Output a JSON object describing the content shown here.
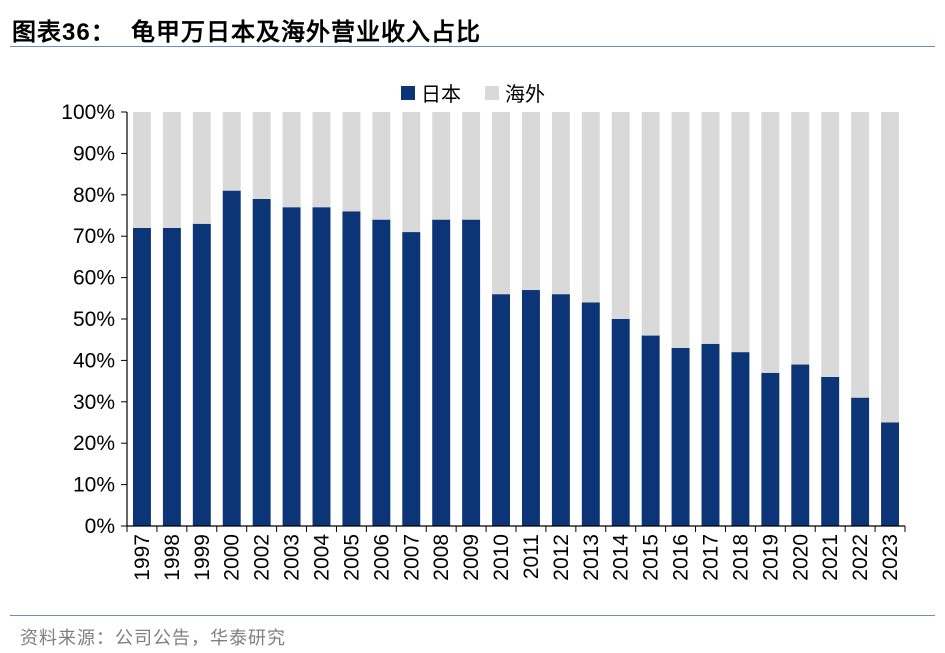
{
  "header": {
    "title": "图表36：  龟甲万日本及海外营业收入占比"
  },
  "footer": {
    "source": "资料来源：公司公告，华泰研究"
  },
  "colors": {
    "japan": "#0c3578",
    "overseas": "#d9d9d9",
    "rule": "#6d8fb5"
  },
  "chart_data": {
    "type": "bar",
    "stacked": true,
    "percent": true,
    "categories": [
      "1997",
      "1998",
      "1999",
      "2000",
      "2002",
      "2003",
      "2004",
      "2005",
      "2006",
      "2007",
      "2008",
      "2009",
      "2010",
      "2011",
      "2012",
      "2013",
      "2014",
      "2015",
      "2016",
      "2017",
      "2018",
      "2019",
      "2020",
      "2021",
      "2022",
      "2023"
    ],
    "series": [
      {
        "name": "日本",
        "values": [
          72,
          72,
          73,
          81,
          79,
          77,
          77,
          76,
          74,
          71,
          74,
          74,
          56,
          57,
          56,
          54,
          50,
          46,
          43,
          44,
          42,
          37,
          39,
          36,
          31,
          25
        ]
      },
      {
        "name": "海外",
        "values": [
          28,
          28,
          27,
          19,
          21,
          23,
          23,
          24,
          26,
          29,
          26,
          26,
          44,
          43,
          44,
          46,
          50,
          54,
          57,
          56,
          58,
          63,
          61,
          64,
          69,
          75
        ]
      }
    ],
    "ylim": [
      0,
      100
    ],
    "yticks": [
      "0%",
      "10%",
      "20%",
      "30%",
      "40%",
      "50%",
      "60%",
      "70%",
      "80%",
      "90%",
      "100%"
    ],
    "legend": "top-center",
    "grid": false
  }
}
